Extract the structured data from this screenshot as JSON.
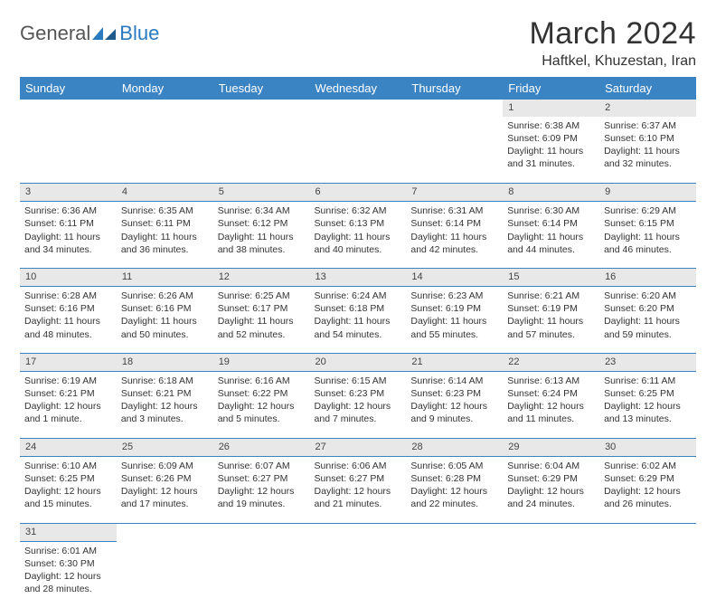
{
  "logo": {
    "text1": "General",
    "text2": "Blue"
  },
  "title": "March 2024",
  "location": "Haftkel, Khuzestan, Iran",
  "colors": {
    "header_bg": "#3b84c4",
    "header_text": "#ffffff",
    "daynum_bg": "#e8e8e8",
    "border": "#3b84c4",
    "logo_gray": "#555555",
    "logo_blue": "#2a7abf",
    "page_bg": "#ffffff"
  },
  "weekdays": [
    "Sunday",
    "Monday",
    "Tuesday",
    "Wednesday",
    "Thursday",
    "Friday",
    "Saturday"
  ],
  "weeks": [
    {
      "nums": [
        "",
        "",
        "",
        "",
        "",
        "1",
        "2"
      ],
      "cells": [
        null,
        null,
        null,
        null,
        null,
        {
          "sunrise": "Sunrise: 6:38 AM",
          "sunset": "Sunset: 6:09 PM",
          "day1": "Daylight: 11 hours",
          "day2": "and 31 minutes."
        },
        {
          "sunrise": "Sunrise: 6:37 AM",
          "sunset": "Sunset: 6:10 PM",
          "day1": "Daylight: 11 hours",
          "day2": "and 32 minutes."
        }
      ]
    },
    {
      "nums": [
        "3",
        "4",
        "5",
        "6",
        "7",
        "8",
        "9"
      ],
      "cells": [
        {
          "sunrise": "Sunrise: 6:36 AM",
          "sunset": "Sunset: 6:11 PM",
          "day1": "Daylight: 11 hours",
          "day2": "and 34 minutes."
        },
        {
          "sunrise": "Sunrise: 6:35 AM",
          "sunset": "Sunset: 6:11 PM",
          "day1": "Daylight: 11 hours",
          "day2": "and 36 minutes."
        },
        {
          "sunrise": "Sunrise: 6:34 AM",
          "sunset": "Sunset: 6:12 PM",
          "day1": "Daylight: 11 hours",
          "day2": "and 38 minutes."
        },
        {
          "sunrise": "Sunrise: 6:32 AM",
          "sunset": "Sunset: 6:13 PM",
          "day1": "Daylight: 11 hours",
          "day2": "and 40 minutes."
        },
        {
          "sunrise": "Sunrise: 6:31 AM",
          "sunset": "Sunset: 6:14 PM",
          "day1": "Daylight: 11 hours",
          "day2": "and 42 minutes."
        },
        {
          "sunrise": "Sunrise: 6:30 AM",
          "sunset": "Sunset: 6:14 PM",
          "day1": "Daylight: 11 hours",
          "day2": "and 44 minutes."
        },
        {
          "sunrise": "Sunrise: 6:29 AM",
          "sunset": "Sunset: 6:15 PM",
          "day1": "Daylight: 11 hours",
          "day2": "and 46 minutes."
        }
      ]
    },
    {
      "nums": [
        "10",
        "11",
        "12",
        "13",
        "14",
        "15",
        "16"
      ],
      "cells": [
        {
          "sunrise": "Sunrise: 6:28 AM",
          "sunset": "Sunset: 6:16 PM",
          "day1": "Daylight: 11 hours",
          "day2": "and 48 minutes."
        },
        {
          "sunrise": "Sunrise: 6:26 AM",
          "sunset": "Sunset: 6:16 PM",
          "day1": "Daylight: 11 hours",
          "day2": "and 50 minutes."
        },
        {
          "sunrise": "Sunrise: 6:25 AM",
          "sunset": "Sunset: 6:17 PM",
          "day1": "Daylight: 11 hours",
          "day2": "and 52 minutes."
        },
        {
          "sunrise": "Sunrise: 6:24 AM",
          "sunset": "Sunset: 6:18 PM",
          "day1": "Daylight: 11 hours",
          "day2": "and 54 minutes."
        },
        {
          "sunrise": "Sunrise: 6:23 AM",
          "sunset": "Sunset: 6:19 PM",
          "day1": "Daylight: 11 hours",
          "day2": "and 55 minutes."
        },
        {
          "sunrise": "Sunrise: 6:21 AM",
          "sunset": "Sunset: 6:19 PM",
          "day1": "Daylight: 11 hours",
          "day2": "and 57 minutes."
        },
        {
          "sunrise": "Sunrise: 6:20 AM",
          "sunset": "Sunset: 6:20 PM",
          "day1": "Daylight: 11 hours",
          "day2": "and 59 minutes."
        }
      ]
    },
    {
      "nums": [
        "17",
        "18",
        "19",
        "20",
        "21",
        "22",
        "23"
      ],
      "cells": [
        {
          "sunrise": "Sunrise: 6:19 AM",
          "sunset": "Sunset: 6:21 PM",
          "day1": "Daylight: 12 hours",
          "day2": "and 1 minute."
        },
        {
          "sunrise": "Sunrise: 6:18 AM",
          "sunset": "Sunset: 6:21 PM",
          "day1": "Daylight: 12 hours",
          "day2": "and 3 minutes."
        },
        {
          "sunrise": "Sunrise: 6:16 AM",
          "sunset": "Sunset: 6:22 PM",
          "day1": "Daylight: 12 hours",
          "day2": "and 5 minutes."
        },
        {
          "sunrise": "Sunrise: 6:15 AM",
          "sunset": "Sunset: 6:23 PM",
          "day1": "Daylight: 12 hours",
          "day2": "and 7 minutes."
        },
        {
          "sunrise": "Sunrise: 6:14 AM",
          "sunset": "Sunset: 6:23 PM",
          "day1": "Daylight: 12 hours",
          "day2": "and 9 minutes."
        },
        {
          "sunrise": "Sunrise: 6:13 AM",
          "sunset": "Sunset: 6:24 PM",
          "day1": "Daylight: 12 hours",
          "day2": "and 11 minutes."
        },
        {
          "sunrise": "Sunrise: 6:11 AM",
          "sunset": "Sunset: 6:25 PM",
          "day1": "Daylight: 12 hours",
          "day2": "and 13 minutes."
        }
      ]
    },
    {
      "nums": [
        "24",
        "25",
        "26",
        "27",
        "28",
        "29",
        "30"
      ],
      "cells": [
        {
          "sunrise": "Sunrise: 6:10 AM",
          "sunset": "Sunset: 6:25 PM",
          "day1": "Daylight: 12 hours",
          "day2": "and 15 minutes."
        },
        {
          "sunrise": "Sunrise: 6:09 AM",
          "sunset": "Sunset: 6:26 PM",
          "day1": "Daylight: 12 hours",
          "day2": "and 17 minutes."
        },
        {
          "sunrise": "Sunrise: 6:07 AM",
          "sunset": "Sunset: 6:27 PM",
          "day1": "Daylight: 12 hours",
          "day2": "and 19 minutes."
        },
        {
          "sunrise": "Sunrise: 6:06 AM",
          "sunset": "Sunset: 6:27 PM",
          "day1": "Daylight: 12 hours",
          "day2": "and 21 minutes."
        },
        {
          "sunrise": "Sunrise: 6:05 AM",
          "sunset": "Sunset: 6:28 PM",
          "day1": "Daylight: 12 hours",
          "day2": "and 22 minutes."
        },
        {
          "sunrise": "Sunrise: 6:04 AM",
          "sunset": "Sunset: 6:29 PM",
          "day1": "Daylight: 12 hours",
          "day2": "and 24 minutes."
        },
        {
          "sunrise": "Sunrise: 6:02 AM",
          "sunset": "Sunset: 6:29 PM",
          "day1": "Daylight: 12 hours",
          "day2": "and 26 minutes."
        }
      ]
    },
    {
      "nums": [
        "31",
        "",
        "",
        "",
        "",
        "",
        ""
      ],
      "cells": [
        {
          "sunrise": "Sunrise: 6:01 AM",
          "sunset": "Sunset: 6:30 PM",
          "day1": "Daylight: 12 hours",
          "day2": "and 28 minutes."
        },
        null,
        null,
        null,
        null,
        null,
        null
      ]
    }
  ]
}
